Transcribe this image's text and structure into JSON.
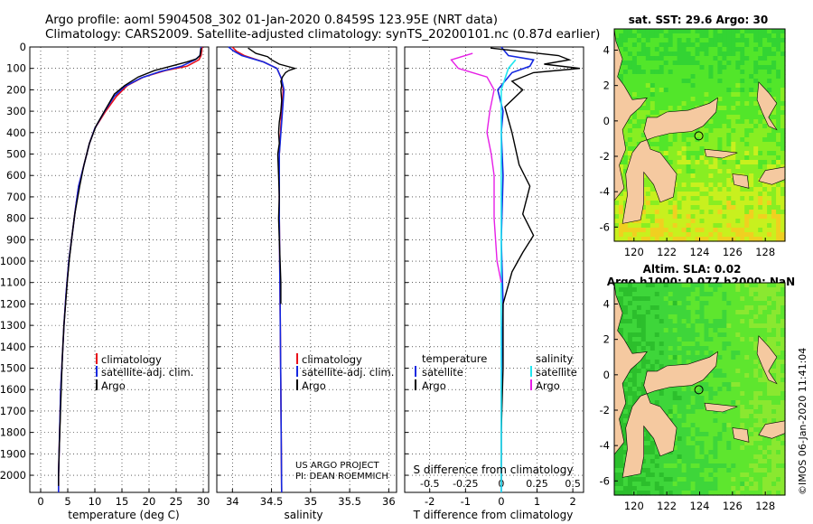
{
  "header": {
    "line1": "Argo profile: aoml 5904508_302 01-Jan-2020 0.8459S 123.95E (NRT data)",
    "line2": "Climatology: CARS2009. Satellite-adjusted climatology: synTS_20200101.nc (0.87d earlier)"
  },
  "colors": {
    "climatology": "#e8101a",
    "satellite": "#1428e0",
    "argo": "#000000",
    "salinity_sat": "#22e6f0",
    "salinity_argo": "#e61ee6",
    "land": "#f5c9a0"
  },
  "chart_data": [
    {
      "type": "line",
      "id": "temperature",
      "xlabel": "temperature (deg C)",
      "ylabel": "",
      "xlim": [
        -2,
        31
      ],
      "ylim": [
        0,
        2080
      ],
      "xticks": [
        "0",
        "5",
        "10",
        "15",
        "20",
        "25",
        "30"
      ],
      "yticks": [
        "0",
        "100",
        "200",
        "300",
        "400",
        "500",
        "600",
        "700",
        "800",
        "900",
        "1000",
        "1100",
        "1200",
        "1300",
        "1400",
        "1500",
        "1600",
        "1700",
        "1800",
        "1900",
        "2000"
      ],
      "legend": {
        "position": "bottom-center",
        "entries": [
          "climatology",
          "satellite-adj. clim.",
          "Argo"
        ]
      },
      "series": [
        {
          "name": "climatology",
          "color": "#e8101a",
          "points": [
            [
              29.8,
              0
            ],
            [
              29.6,
              40
            ],
            [
              29.2,
              60
            ],
            [
              27,
              90
            ],
            [
              23,
              110
            ],
            [
              19,
              140
            ],
            [
              16,
              180
            ],
            [
              14,
              230
            ],
            [
              12,
              300
            ],
            [
              10,
              380
            ],
            [
              9,
              450
            ],
            [
              8,
              550
            ],
            [
              7,
              650
            ],
            [
              6.4,
              760
            ],
            [
              5.8,
              880
            ],
            [
              5.2,
              1000
            ],
            [
              4.7,
              1150
            ],
            [
              4.3,
              1300
            ],
            [
              4,
              1450
            ],
            [
              3.7,
              1600
            ],
            [
              3.5,
              1800
            ],
            [
              3.3,
              2000
            ],
            [
              3.3,
              2080
            ]
          ]
        },
        {
          "name": "satellite-adj. clim.",
          "color": "#1428e0",
          "points": [
            [
              29.6,
              0
            ],
            [
              29.4,
              40
            ],
            [
              28.5,
              60
            ],
            [
              26,
              90
            ],
            [
              22,
              115
            ],
            [
              18.5,
              145
            ],
            [
              15.5,
              185
            ],
            [
              13.6,
              230
            ],
            [
              11.8,
              300
            ],
            [
              10,
              380
            ],
            [
              9,
              450
            ],
            [
              8,
              550
            ],
            [
              7,
              650
            ],
            [
              6.4,
              760
            ],
            [
              5.8,
              880
            ],
            [
              5.2,
              1000
            ],
            [
              4.7,
              1150
            ],
            [
              4.3,
              1300
            ],
            [
              4,
              1450
            ],
            [
              3.7,
              1600
            ],
            [
              3.5,
              1800
            ],
            [
              3.3,
              2000
            ],
            [
              3.3,
              2080
            ]
          ]
        },
        {
          "name": "Argo",
          "color": "#000000",
          "points": [
            [
              29.6,
              5
            ],
            [
              29.4,
              40
            ],
            [
              28.8,
              55
            ],
            [
              27,
              70
            ],
            [
              24,
              90
            ],
            [
              21,
              110
            ],
            [
              18,
              140
            ],
            [
              15.5,
              180
            ],
            [
              13.6,
              220
            ],
            [
              12,
              290
            ],
            [
              10.2,
              370
            ],
            [
              9,
              450
            ],
            [
              8,
              550
            ],
            [
              7.2,
              650
            ],
            [
              6.3,
              780
            ],
            [
              5.8,
              880
            ],
            [
              5.3,
              990
            ],
            [
              4.9,
              1100
            ],
            [
              4.6,
              1200
            ],
            [
              4.3,
              1300
            ],
            [
              4,
              1450
            ],
            [
              3.8,
              1600
            ],
            [
              3.6,
              1750
            ],
            [
              3.4,
              1900
            ],
            [
              3.3,
              2000
            ],
            [
              3.3,
              2050
            ]
          ]
        }
      ]
    },
    {
      "type": "line",
      "id": "salinity",
      "xlabel": "salinity",
      "xlim": [
        33.8,
        36.1
      ],
      "ylim": [
        0,
        2080
      ],
      "xticks": [
        "34",
        "34.5",
        "35",
        "35.5",
        "36"
      ],
      "legend": {
        "position": "bottom-center",
        "entries": [
          "climatology",
          "satellite-adj. clim.",
          "Argo"
        ]
      },
      "annotation": [
        "US ARGO PROJECT",
        "PI: DEAN ROEMMICH"
      ],
      "series": [
        {
          "name": "climatology",
          "color": "#e8101a",
          "points": [
            [
              34.0,
              0
            ],
            [
              34.05,
              20
            ],
            [
              34.15,
              40
            ],
            [
              34.4,
              70
            ],
            [
              34.57,
              100
            ],
            [
              34.63,
              150
            ],
            [
              34.65,
              200
            ],
            [
              34.63,
              300
            ],
            [
              34.6,
              500
            ],
            [
              34.6,
              800
            ],
            [
              34.61,
              1200
            ],
            [
              34.62,
              1600
            ],
            [
              34.63,
              2080
            ]
          ]
        },
        {
          "name": "satellite-adj. clim.",
          "color": "#1428e0",
          "points": [
            [
              33.95,
              0
            ],
            [
              34.02,
              20
            ],
            [
              34.12,
              40
            ],
            [
              34.4,
              70
            ],
            [
              34.57,
              100
            ],
            [
              34.63,
              150
            ],
            [
              34.66,
              200
            ],
            [
              34.64,
              300
            ],
            [
              34.6,
              500
            ],
            [
              34.6,
              800
            ],
            [
              34.61,
              1200
            ],
            [
              34.62,
              1600
            ],
            [
              34.63,
              2080
            ]
          ]
        },
        {
          "name": "Argo",
          "color": "#000000",
          "points": [
            [
              34.2,
              5
            ],
            [
              34.3,
              30
            ],
            [
              34.45,
              45
            ],
            [
              34.5,
              60
            ],
            [
              34.6,
              80
            ],
            [
              34.75,
              95
            ],
            [
              34.8,
              100
            ],
            [
              34.72,
              110
            ],
            [
              34.68,
              120
            ],
            [
              34.64,
              140
            ],
            [
              34.62,
              160
            ],
            [
              34.63,
              180
            ],
            [
              34.62,
              200
            ],
            [
              34.63,
              250
            ],
            [
              34.62,
              300
            ],
            [
              34.6,
              350
            ],
            [
              34.59,
              400
            ],
            [
              34.6,
              450
            ],
            [
              34.58,
              500
            ],
            [
              34.59,
              600
            ],
            [
              34.6,
              700
            ],
            [
              34.59,
              800
            ],
            [
              34.6,
              900
            ],
            [
              34.61,
              1000
            ],
            [
              34.62,
              1100
            ],
            [
              34.62,
              1200
            ]
          ]
        }
      ]
    },
    {
      "type": "line",
      "id": "difference",
      "xlabel": "T difference from climatology",
      "top_axis_label": "S difference from climatology",
      "xlim": [
        -2.7,
        2.3
      ],
      "ylim": [
        0,
        2080
      ],
      "xticks": [
        "-2",
        "-1",
        "0",
        "1",
        "2"
      ],
      "top_xticks": [
        "-0.5",
        "-0.25",
        "0",
        "0.25",
        "0.5"
      ],
      "legend_left": {
        "title": "temperature",
        "entries": [
          "satellite",
          "Argo"
        ]
      },
      "legend_right": {
        "title": "salinity",
        "entries": [
          "satellite",
          "Argo"
        ]
      },
      "series": [
        {
          "name": "temperature satellite",
          "color": "#1428e0",
          "points": [
            [
              0,
              0
            ],
            [
              0.2,
              40
            ],
            [
              0.9,
              60
            ],
            [
              0.8,
              90
            ],
            [
              0.3,
              120
            ],
            [
              0.1,
              160
            ],
            [
              -0.1,
              200
            ],
            [
              0.05,
              300
            ],
            [
              0,
              400
            ],
            [
              0.05,
              600
            ],
            [
              0,
              900
            ],
            [
              0.05,
              1200
            ],
            [
              0,
              1600
            ],
            [
              0,
              2080
            ]
          ]
        },
        {
          "name": "temperature Argo",
          "color": "#000000",
          "points": [
            [
              -0.3,
              5
            ],
            [
              0.5,
              20
            ],
            [
              1.6,
              40
            ],
            [
              1.9,
              60
            ],
            [
              1.2,
              80
            ],
            [
              2.2,
              100
            ],
            [
              0.9,
              120
            ],
            [
              0.3,
              160
            ],
            [
              0.6,
              200
            ],
            [
              0.1,
              280
            ],
            [
              0.3,
              400
            ],
            [
              0.5,
              550
            ],
            [
              0.8,
              650
            ],
            [
              0.6,
              780
            ],
            [
              0.9,
              880
            ],
            [
              0.6,
              960
            ],
            [
              0.3,
              1050
            ],
            [
              0.05,
              1200
            ],
            [
              0.05,
              1500
            ],
            [
              0,
              1800
            ],
            [
              0,
              2050
            ]
          ]
        },
        {
          "name": "salinity satellite",
          "color": "#22e6f0",
          "points": [
            [
              0.1,
              60
            ],
            [
              0.05,
              100
            ],
            [
              0,
              200
            ],
            [
              0,
              500
            ],
            [
              0,
              800
            ],
            [
              0,
              1000
            ],
            [
              0,
              1300
            ],
            [
              0,
              1600
            ],
            [
              0,
              2080
            ]
          ]
        },
        {
          "name": "salinity Argo",
          "color": "#e61ee6",
          "points": [
            [
              -0.2,
              30
            ],
            [
              -0.35,
              60
            ],
            [
              -0.3,
              100
            ],
            [
              -0.1,
              140
            ],
            [
              -0.05,
              200
            ],
            [
              -0.08,
              300
            ],
            [
              -0.1,
              400
            ],
            [
              -0.07,
              500
            ],
            [
              -0.05,
              600
            ],
            [
              -0.05,
              800
            ],
            [
              -0.03,
              1000
            ],
            [
              0,
              1100
            ]
          ]
        }
      ]
    }
  ],
  "maps": [
    {
      "title": "sat. SST: 29.6 Argo: 30",
      "ylabels": [
        "4",
        "2",
        "0",
        "-2",
        "-4",
        "-6"
      ],
      "xlabels": [
        "120",
        "122",
        "124",
        "126",
        "128"
      ]
    },
    {
      "title": "Altim. SLA: 0.02",
      "title2": "Argo h1000: 0.077 h2000: NaN",
      "ylabels": [
        "4",
        "2",
        "0",
        "-2",
        "-4",
        "-6"
      ],
      "xlabels": [
        "120",
        "122",
        "124",
        "126",
        "128"
      ]
    }
  ],
  "footer": {
    "vertical_text": "©IMOS 06-Jan-2020 11:41:04"
  }
}
